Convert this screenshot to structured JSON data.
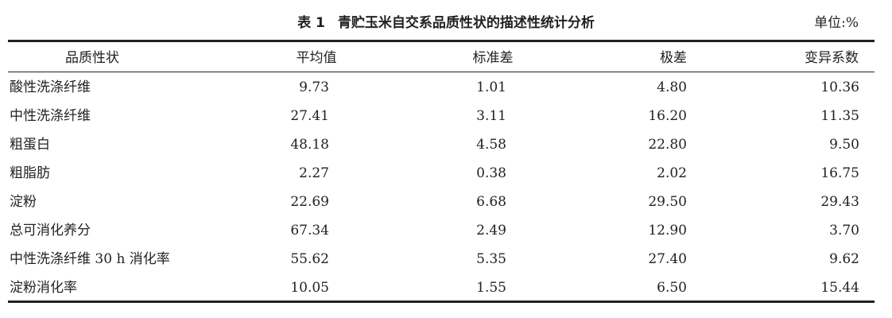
{
  "caption": {
    "number": "表 1",
    "title": "青贮玉米自交系品质性状的描述性统计分析",
    "unit": "单位:%"
  },
  "columns": [
    "品质性状",
    "平均值",
    "标准差",
    "极差",
    "变异系数"
  ],
  "rows": [
    [
      "酸性洗涤纤维",
      "9.73",
      "1.01",
      "4.80",
      "10.36"
    ],
    [
      "中性洗涤纤维",
      "27.41",
      "3.11",
      "16.20",
      "11.35"
    ],
    [
      "粗蛋白",
      "48.18",
      "4.58",
      "22.80",
      "9.50"
    ],
    [
      "粗脂肪",
      "2.27",
      "0.38",
      "2.02",
      "16.75"
    ],
    [
      "淀粉",
      "22.69",
      "6.68",
      "29.50",
      "29.43"
    ],
    [
      "总可消化养分",
      "67.34",
      "2.49",
      "12.90",
      "3.70"
    ],
    [
      "中性洗涤纤维 30 h 消化率",
      "55.62",
      "5.35",
      "27.40",
      "9.62"
    ],
    [
      "淀粉消化率",
      "10.05",
      "1.55",
      "6.50",
      "15.44"
    ]
  ]
}
